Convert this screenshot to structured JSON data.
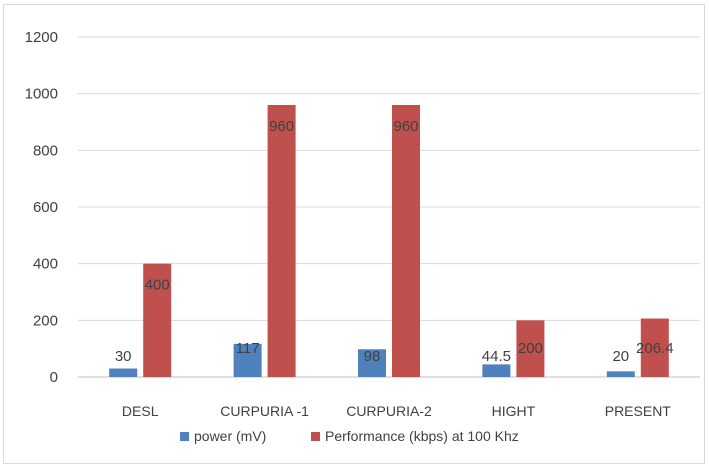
{
  "chart_data": {
    "type": "bar",
    "categories": [
      "DESL",
      "CURPURIA -1",
      "CURPURIA-2",
      "HIGHT",
      "PRESENT"
    ],
    "series": [
      {
        "name": "power (mV)",
        "values": [
          30,
          117,
          98,
          44.5,
          20
        ],
        "labels": [
          "30",
          "117",
          "98",
          "44.5",
          "20"
        ],
        "color": "#4f81bd"
      },
      {
        "name": "Performance (kbps) at 100 Khz",
        "values": [
          400,
          960,
          960,
          200,
          206.4
        ],
        "labels": [
          "400",
          "960",
          "960",
          "200",
          "206.4"
        ],
        "color": "#c0504d"
      }
    ],
    "yticks": [
      "0",
      "200",
      "400",
      "600",
      "800",
      "1000",
      "1200"
    ],
    "ylim": [
      0,
      1200
    ],
    "grid": true,
    "legend_position": "bottom"
  }
}
